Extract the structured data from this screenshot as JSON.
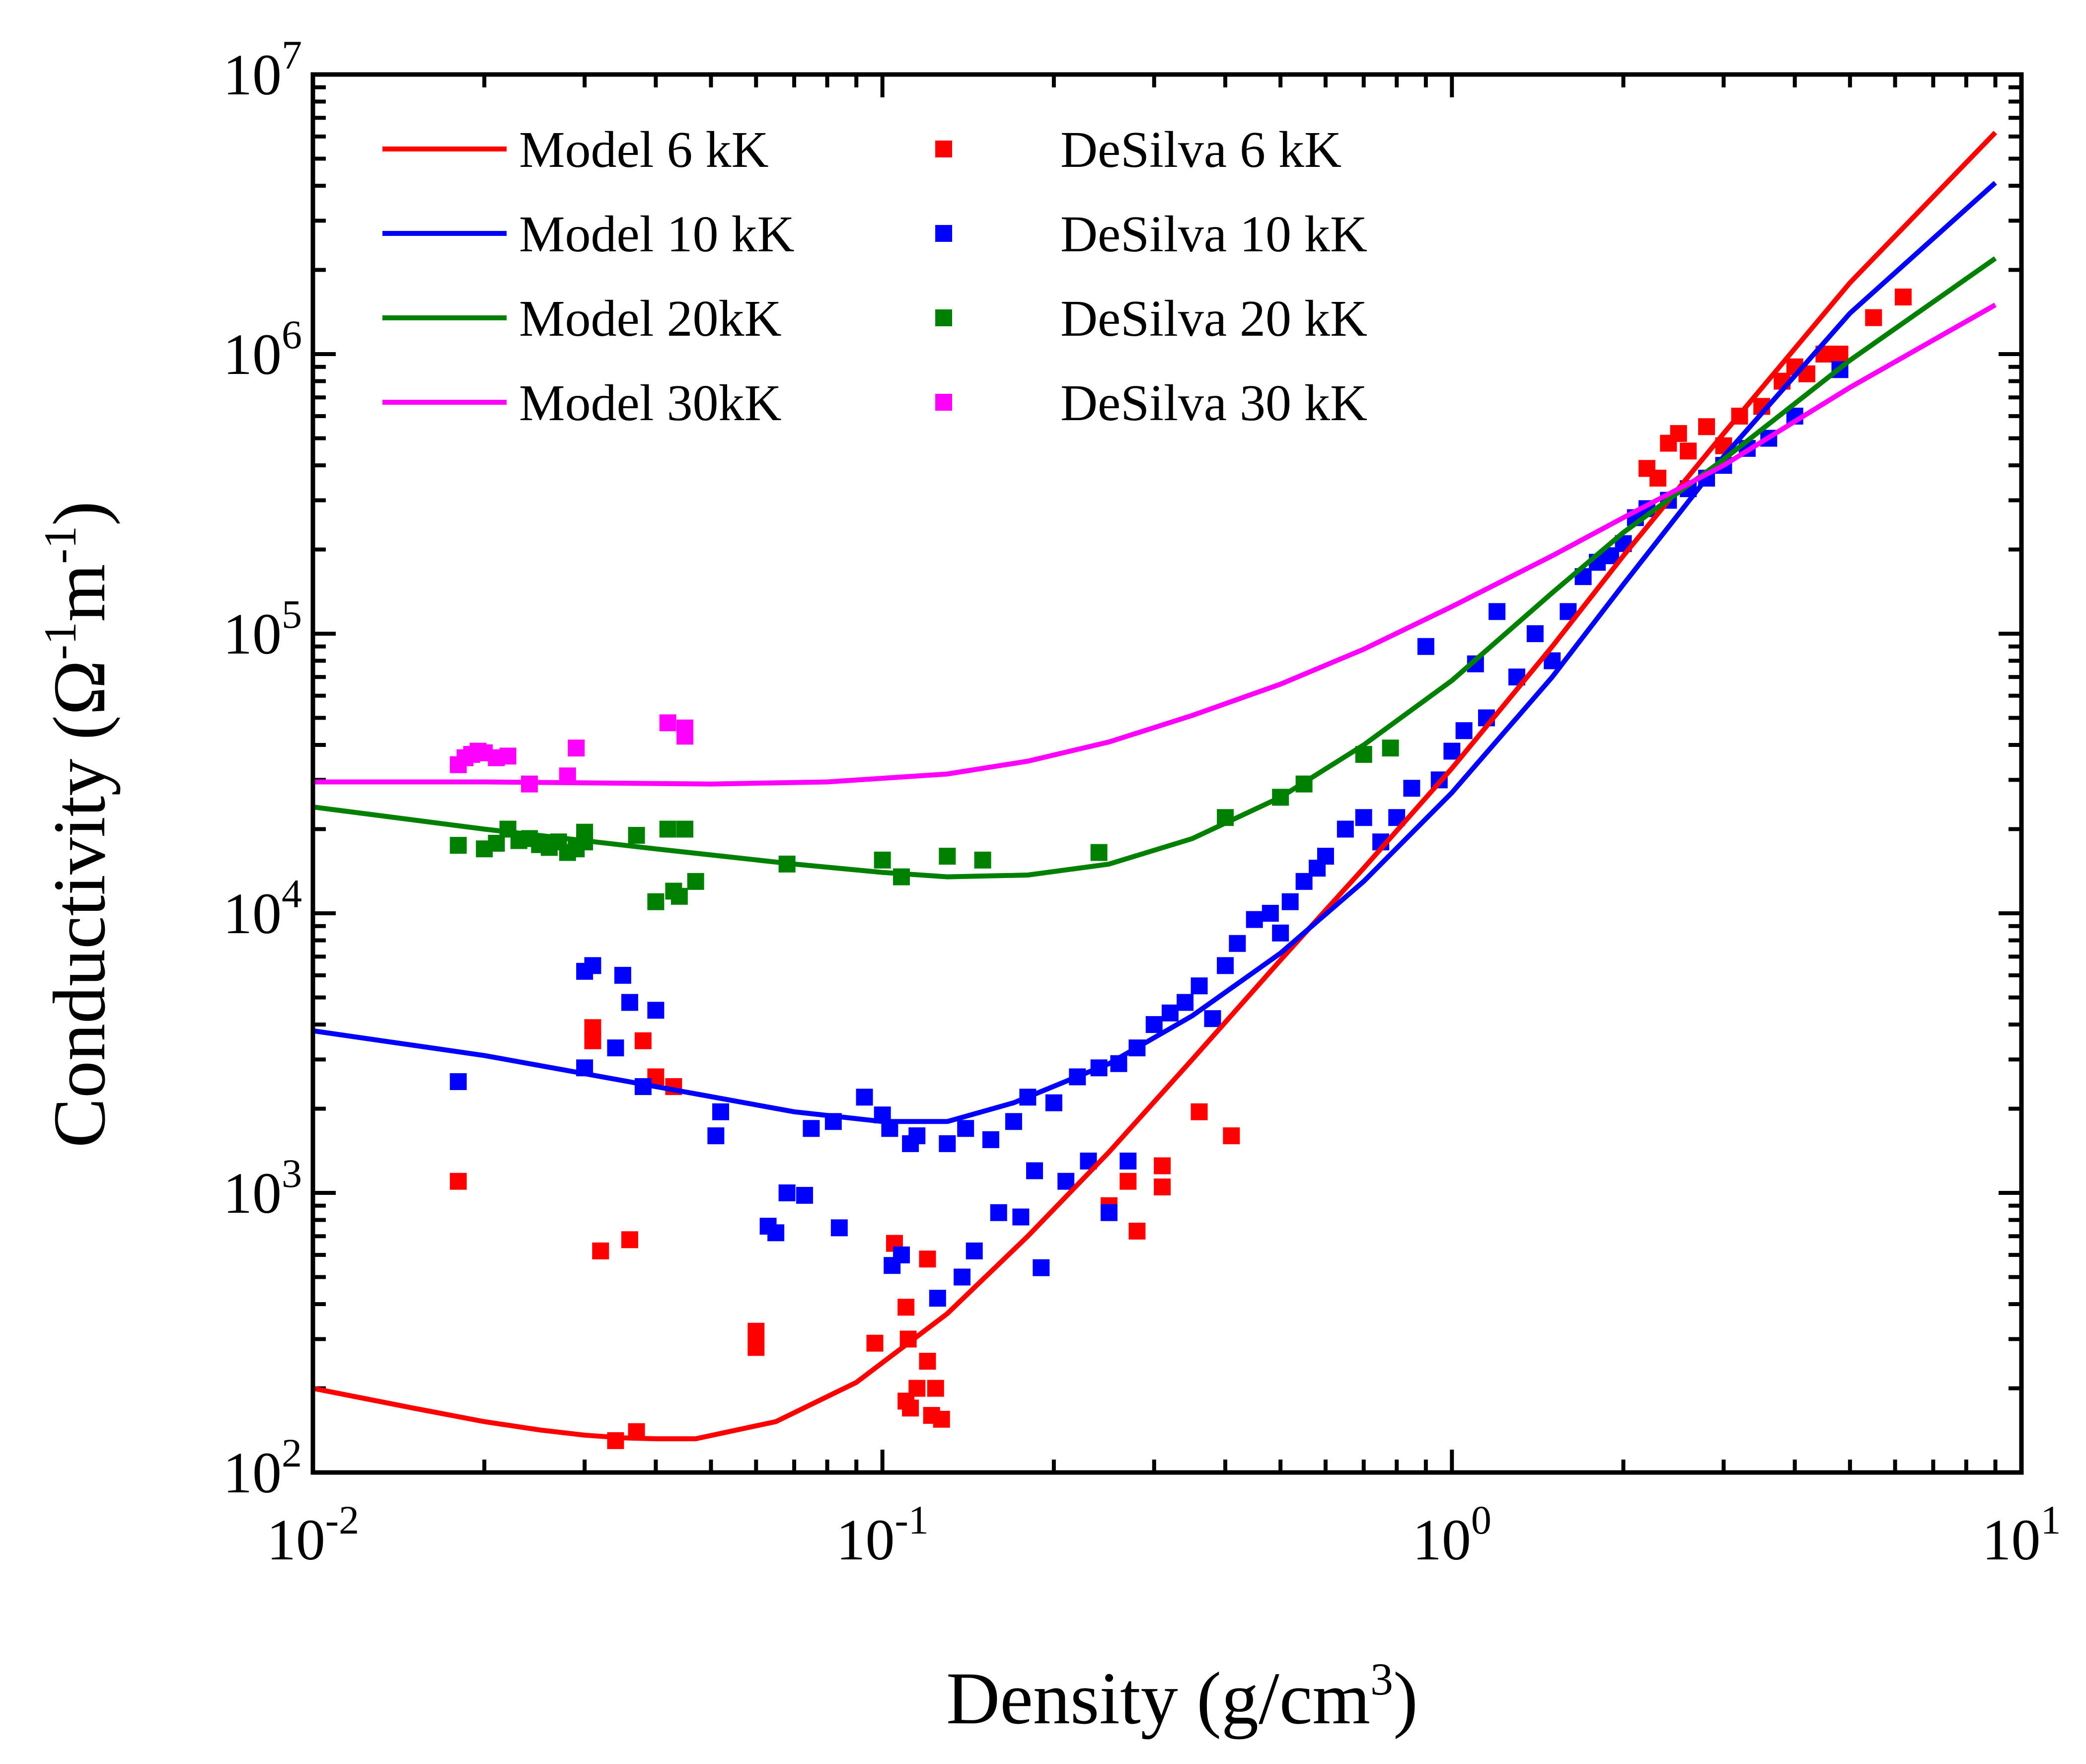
{
  "chart_data": {
    "type": "scatter",
    "xlabel": "Density (g/cm3)",
    "xlabel_parts": {
      "main": "Density (g/cm",
      "sup": "3",
      "close": ")"
    },
    "ylabel": "Conductivity (Ω-1m-1)",
    "ylabel_parts": {
      "main": "Conductivity (Ω",
      "sup1": "-1",
      "mid": "m",
      "sup2": "-1",
      "close": ")"
    },
    "xscale": "log",
    "yscale": "log",
    "xlim": [
      0.01,
      10
    ],
    "ylim": [
      100,
      10000000
    ],
    "grid": false,
    "legend_position": "top-left",
    "x_ticks": [
      {
        "base": "10",
        "exp": "-2",
        "value": 0.01
      },
      {
        "base": "10",
        "exp": "-1",
        "value": 0.1
      },
      {
        "base": "10",
        "exp": "0",
        "value": 1
      },
      {
        "base": "10",
        "exp": "1",
        "value": 10
      }
    ],
    "y_ticks": [
      {
        "base": "10",
        "exp": "2",
        "value": 100
      },
      {
        "base": "10",
        "exp": "3",
        "value": 1000
      },
      {
        "base": "10",
        "exp": "4",
        "value": 10000
      },
      {
        "base": "10",
        "exp": "5",
        "value": 100000
      },
      {
        "base": "10",
        "exp": "6",
        "value": 1000000
      },
      {
        "base": "10",
        "exp": "7",
        "value": 10000000
      }
    ],
    "line_series": [
      {
        "name": "Model 6 kK",
        "color": "#ff0000",
        "x": [
          0.01,
          0.015,
          0.02,
          0.025,
          0.03,
          0.035,
          0.04,
          0.047,
          0.065,
          0.09,
          0.13,
          0.18,
          0.25,
          0.35,
          0.5,
          0.7,
          1.0,
          1.5,
          2.0,
          3.0,
          5.0,
          9.0
        ],
        "y": [
          200,
          170,
          152,
          142,
          136,
          133,
          132,
          132,
          152,
          210,
          370,
          700,
          1400,
          3000,
          6800,
          14500,
          33000,
          90000,
          190000,
          520000,
          1800000,
          6200000
        ]
      },
      {
        "name": "Model 10 kK",
        "color": "#0000ff",
        "x": [
          0.01,
          0.02,
          0.04,
          0.07,
          0.1,
          0.13,
          0.17,
          0.25,
          0.35,
          0.5,
          0.7,
          1.0,
          1.5,
          2.0,
          3.0,
          5.0,
          9.0
        ],
        "y": [
          3800,
          3100,
          2400,
          1950,
          1800,
          1800,
          2100,
          2900,
          4300,
          7200,
          13000,
          27000,
          70000,
          150000,
          430000,
          1400000,
          4100000
        ]
      },
      {
        "name": "Model 20kK",
        "color": "#008000",
        "x": [
          0.01,
          0.02,
          0.04,
          0.07,
          0.1,
          0.13,
          0.18,
          0.25,
          0.35,
          0.5,
          0.7,
          1.0,
          1.5,
          2.0,
          3.0,
          5.0,
          9.0
        ],
        "y": [
          24000,
          20000,
          17000,
          15000,
          14000,
          13500,
          13700,
          15000,
          18500,
          26000,
          40000,
          68000,
          140000,
          230000,
          420000,
          950000,
          2200000
        ]
      },
      {
        "name": "Model 30kK",
        "color": "#ff00ff",
        "x": [
          0.01,
          0.02,
          0.05,
          0.08,
          0.13,
          0.18,
          0.25,
          0.35,
          0.5,
          0.7,
          1.0,
          1.5,
          2.0,
          3.0,
          5.0,
          9.0
        ],
        "y": [
          29500,
          29500,
          29000,
          29500,
          31500,
          35000,
          41000,
          51000,
          66000,
          88000,
          125000,
          190000,
          260000,
          400000,
          760000,
          1500000
        ]
      }
    ],
    "scatter_series": [
      {
        "name": "DeSilva 6 kK",
        "color": "#ff0000",
        "x": [
          0.018,
          0.032,
          0.034,
          0.036,
          0.037,
          0.031,
          0.031,
          0.038,
          0.04,
          0.043,
          0.06,
          0.06,
          0.097,
          0.105,
          0.11,
          0.111,
          0.115,
          0.11,
          0.112,
          0.12,
          0.12,
          0.124,
          0.122,
          0.127,
          0.25,
          0.27,
          0.28,
          0.31,
          0.31,
          0.36,
          0.41,
          2.2,
          2.3,
          2.4,
          2.5,
          2.6,
          2.8,
          3.0,
          3.2,
          3.5,
          3.8,
          4.0,
          4.2,
          4.5,
          4.8,
          5.5,
          6.2
        ],
        "y": [
          1100,
          620,
          130,
          680,
          140,
          3900,
          3500,
          3500,
          2600,
          2400,
          320,
          280,
          290,
          660,
          390,
          300,
          200,
          180,
          170,
          580,
          250,
          200,
          160,
          155,
          900,
          1100,
          730,
          1250,
          1050,
          1950,
          1600,
          390000,
          360000,
          480000,
          520000,
          450000,
          550000,
          470000,
          600000,
          650000,
          800000,
          900000,
          850000,
          1000000,
          1000000,
          1350000,
          1600000
        ]
      },
      {
        "name": "DeSilva 10 kK",
        "color": "#0000ff",
        "x": [
          0.018,
          0.03,
          0.031,
          0.03,
          0.034,
          0.035,
          0.036,
          0.038,
          0.04,
          0.051,
          0.052,
          0.063,
          0.065,
          0.068,
          0.073,
          0.075,
          0.082,
          0.084,
          0.093,
          0.1,
          0.103,
          0.104,
          0.108,
          0.112,
          0.115,
          0.125,
          0.13,
          0.138,
          0.14,
          0.145,
          0.155,
          0.16,
          0.17,
          0.175,
          0.18,
          0.185,
          0.19,
          0.2,
          0.21,
          0.22,
          0.23,
          0.24,
          0.25,
          0.26,
          0.27,
          0.28,
          0.3,
          0.32,
          0.34,
          0.36,
          0.38,
          0.4,
          0.42,
          0.45,
          0.48,
          0.5,
          0.52,
          0.55,
          0.58,
          0.6,
          0.65,
          0.7,
          0.75,
          0.8,
          0.85,
          0.9,
          0.95,
          1.0,
          1.05,
          1.1,
          1.15,
          1.2,
          1.3,
          1.4,
          1.5,
          1.6,
          1.7,
          1.8,
          1.9,
          2.0,
          2.1,
          2.2,
          2.4,
          2.6,
          2.8,
          3.0,
          3.3,
          3.6,
          4.0,
          4.8
        ],
        "y": [
          2500,
          6200,
          6500,
          2800,
          3300,
          6000,
          4800,
          2400,
          4500,
          1600,
          1950,
          760,
          720,
          1000,
          980,
          1700,
          1800,
          750,
          2200,
          1900,
          1700,
          550,
          600,
          1500,
          1600,
          420,
          1500,
          500,
          1700,
          620,
          1550,
          850,
          1800,
          820,
          2200,
          1200,
          540,
          2100,
          1100,
          2600,
          1300,
          2800,
          850,
          2900,
          1300,
          3300,
          4000,
          4400,
          4800,
          5500,
          4200,
          6500,
          7800,
          9500,
          10000,
          8500,
          11000,
          13000,
          14500,
          16000,
          20000,
          22000,
          18000,
          22000,
          28000,
          90000,
          30000,
          38000,
          45000,
          78000,
          50000,
          120000,
          70000,
          100000,
          80000,
          120000,
          160000,
          180000,
          190000,
          210000,
          260000,
          280000,
          300000,
          330000,
          360000,
          400000,
          460000,
          500000,
          600000,
          880000
        ]
      },
      {
        "name": "DeSilva 20 kK",
        "color": "#008000",
        "x": [
          0.018,
          0.02,
          0.021,
          0.022,
          0.023,
          0.024,
          0.025,
          0.026,
          0.027,
          0.028,
          0.029,
          0.03,
          0.03,
          0.037,
          0.04,
          0.042,
          0.043,
          0.044,
          0.045,
          0.047,
          0.068,
          0.1,
          0.108,
          0.13,
          0.15,
          0.24,
          0.4,
          0.5,
          0.55,
          0.7,
          0.78
        ],
        "y": [
          17500,
          17000,
          17800,
          20000,
          18200,
          18500,
          17600,
          17200,
          18000,
          16500,
          17000,
          19500,
          18000,
          19000,
          11000,
          20000,
          12000,
          11500,
          20000,
          13000,
          15000,
          15500,
          13500,
          16000,
          15500,
          16500,
          22000,
          26000,
          29000,
          37000,
          39000
        ]
      },
      {
        "name": "DeSilva 30 kK",
        "color": "#ff00ff",
        "x": [
          0.018,
          0.0185,
          0.019,
          0.0195,
          0.02,
          0.021,
          0.022,
          0.024,
          0.028,
          0.029,
          0.042,
          0.045,
          0.045
        ],
        "y": [
          34000,
          36000,
          37000,
          38000,
          37500,
          36000,
          36500,
          29000,
          31000,
          39000,
          48000,
          43000,
          46000
        ]
      }
    ]
  }
}
